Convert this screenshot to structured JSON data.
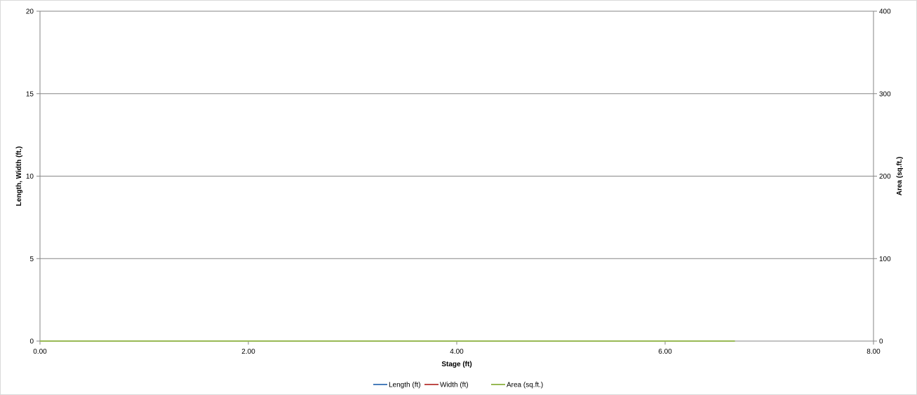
{
  "chart_data": {
    "type": "line",
    "x_axis": {
      "label": "Stage (ft)",
      "range": [
        0,
        8
      ],
      "ticks": [
        "0.00",
        "2.00",
        "4.00",
        "6.00",
        "8.00"
      ],
      "tick_values": [
        0,
        2,
        4,
        6,
        8
      ]
    },
    "y_axis_left": {
      "label": "Length, Width (ft.)",
      "range": [
        0,
        20
      ],
      "ticks": [
        "0",
        "5",
        "10",
        "15",
        "20"
      ],
      "tick_values": [
        0,
        5,
        10,
        15,
        20
      ]
    },
    "y_axis_right": {
      "label": "Area (sq.ft.)",
      "range": [
        0,
        400
      ],
      "ticks": [
        "0",
        "100",
        "200",
        "300",
        "400"
      ],
      "tick_values": [
        0,
        100,
        200,
        300,
        400
      ]
    },
    "grid": "horizontal",
    "legend_position": "bottom",
    "series": [
      {
        "name": "Length (ft)",
        "axis": "left",
        "color": "#4a7ebb",
        "x": [
          0,
          6.67
        ],
        "y": [
          0,
          0
        ]
      },
      {
        "name": "Width (ft)",
        "axis": "left",
        "color": "#be4b48",
        "x": [
          0,
          6.67
        ],
        "y": [
          0,
          0
        ]
      },
      {
        "name": "Area (sq.ft.)",
        "axis": "right",
        "color": "#98b954",
        "x": [
          0,
          6.67
        ],
        "y": [
          0,
          0
        ]
      }
    ]
  }
}
